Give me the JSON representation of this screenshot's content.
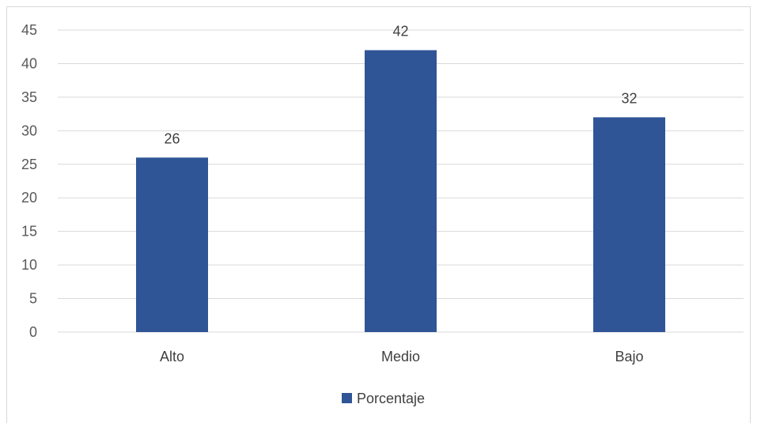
{
  "chart_data": {
    "type": "bar",
    "title": "",
    "xlabel": "",
    "ylabel": "",
    "categories": [
      "Alto",
      "Medio",
      "Bajo"
    ],
    "series": [
      {
        "name": "Porcentaje",
        "values": [
          26,
          42,
          32
        ],
        "color": "#2f5597"
      }
    ],
    "ylim": [
      0,
      45
    ],
    "yticks": [
      0,
      5,
      10,
      15,
      20,
      25,
      30,
      35,
      40,
      45
    ],
    "grid": true,
    "data_labels": true,
    "legend": "bottom"
  }
}
